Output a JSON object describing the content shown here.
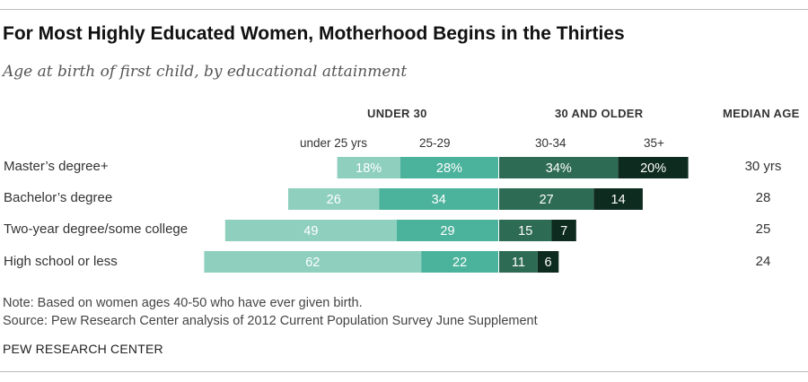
{
  "title": "For Most Highly Educated Women, Motherhood Begins in the Thirties",
  "subtitle": "Age at birth of first child, by educational attainment",
  "group_headers": {
    "under30": "UNDER 30",
    "over30": "30 AND OLDER",
    "median": "MEDIAN AGE"
  },
  "sub_headers": [
    "under 25 yrs",
    "25-29",
    "30-34",
    "35+"
  ],
  "colors": {
    "under25": "#8ecfbd",
    "age25_29": "#4bb29b",
    "age30_34": "#2e6b55",
    "age35plus": "#0e2b20"
  },
  "chart_data": {
    "type": "bar",
    "categories": [
      "Master’s degree+",
      "Bachelor’s degree",
      "Two-year degree/some college",
      "High school or less"
    ],
    "series": [
      {
        "name": "under 25 yrs",
        "values": [
          18,
          26,
          49,
          62
        ]
      },
      {
        "name": "25-29",
        "values": [
          28,
          34,
          29,
          22
        ]
      },
      {
        "name": "30-34",
        "values": [
          34,
          27,
          15,
          11
        ]
      },
      {
        "name": "35+",
        "values": [
          20,
          14,
          7,
          6
        ]
      }
    ],
    "value_labels": [
      [
        "18%",
        "28%",
        "34%",
        "20%"
      ],
      [
        "26",
        "34",
        "27",
        "14"
      ],
      [
        "49",
        "29",
        "15",
        "7"
      ],
      [
        "62",
        "22",
        "11",
        "6"
      ]
    ],
    "median_age": [
      "30 yrs",
      "28",
      "25",
      "24"
    ]
  },
  "notes": {
    "note": "Note: Based on women ages 40-50 who have ever given birth.",
    "source": "Source: Pew Research Center analysis of 2012 Current Population Survey June Supplement",
    "org": "PEW RESEARCH CENTER"
  }
}
